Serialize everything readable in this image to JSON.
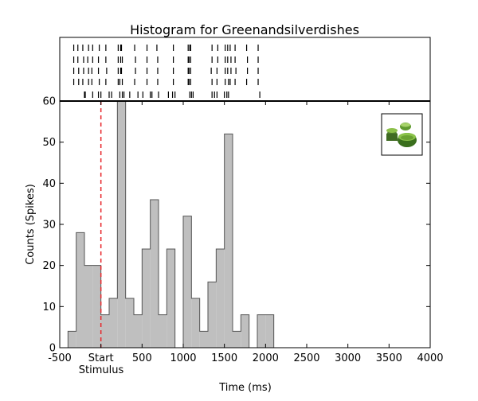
{
  "chart_data": {
    "type": "bar",
    "title": "Histogram for Greenandsilverdishes",
    "xlabel": "Time (ms)",
    "ylabel": "Counts (Spikes)",
    "xlim": [
      -500,
      4000
    ],
    "ylim": [
      0,
      60
    ],
    "xticks": [
      {
        "value": -500,
        "label": "-500"
      },
      {
        "value": 0,
        "label": "Start"
      },
      {
        "value": 500,
        "label": "500"
      },
      {
        "value": 1000,
        "label": "1000"
      },
      {
        "value": 1500,
        "label": "1500"
      },
      {
        "value": 2000,
        "label": "2000"
      },
      {
        "value": 2500,
        "label": "2500"
      },
      {
        "value": 3000,
        "label": "3000"
      },
      {
        "value": 3500,
        "label": "3500"
      },
      {
        "value": 4000,
        "label": "4000"
      }
    ],
    "yticks": [
      0,
      10,
      20,
      30,
      40,
      50,
      60
    ],
    "stimulus_label": "Stimulus",
    "stimulus_marker": {
      "x": 0,
      "style": "dashed",
      "color": "#e8262a"
    },
    "bar_color": "#bfbfbf",
    "bar_edge_color": "#555555",
    "bin_width": 100,
    "bins": [
      {
        "start": -400,
        "value": 4
      },
      {
        "start": -300,
        "value": 28
      },
      {
        "start": -200,
        "value": 20
      },
      {
        "start": -100,
        "value": 20
      },
      {
        "start": 0,
        "value": 8
      },
      {
        "start": 100,
        "value": 12
      },
      {
        "start": 200,
        "value": 60
      },
      {
        "start": 300,
        "value": 12
      },
      {
        "start": 400,
        "value": 8
      },
      {
        "start": 500,
        "value": 24
      },
      {
        "start": 600,
        "value": 36
      },
      {
        "start": 700,
        "value": 8
      },
      {
        "start": 800,
        "value": 24
      },
      {
        "start": 900,
        "value": 0
      },
      {
        "start": 1000,
        "value": 32
      },
      {
        "start": 1100,
        "value": 12
      },
      {
        "start": 1200,
        "value": 4
      },
      {
        "start": 1300,
        "value": 16
      },
      {
        "start": 1400,
        "value": 24
      },
      {
        "start": 1500,
        "value": 52
      },
      {
        "start": 1600,
        "value": 4
      },
      {
        "start": 1700,
        "value": 8
      },
      {
        "start": 1800,
        "value": 0
      },
      {
        "start": 1900,
        "value": 8
      },
      {
        "start": 2000,
        "value": 8
      }
    ],
    "raster": {
      "trials": [
        [
          -330,
          -280,
          -220,
          -150,
          -100,
          -20,
          60,
          210,
          240,
          250,
          410,
          560,
          680,
          880,
          1060,
          1080,
          1090,
          1350,
          1420,
          1510,
          1540,
          1570,
          1630,
          1770,
          1910
        ],
        [
          -330,
          -280,
          -210,
          -160,
          -100,
          -30,
          60,
          210,
          240,
          260,
          420,
          560,
          690,
          880,
          1060,
          1070,
          1090,
          1350,
          1420,
          1510,
          1540,
          1580,
          1630,
          1780,
          1910
        ],
        [
          -330,
          -270,
          -210,
          -150,
          -110,
          -30,
          70,
          210,
          240,
          250,
          420,
          560,
          690,
          880,
          1060,
          1070,
          1090,
          1340,
          1410,
          1510,
          1540,
          1580,
          1640,
          1780,
          1910
        ],
        [
          -330,
          -270,
          -220,
          -150,
          -110,
          -20,
          60,
          210,
          230,
          260,
          410,
          560,
          690,
          880,
          1060,
          1070,
          1090,
          1350,
          1410,
          1510,
          1550,
          1570,
          1630,
          1770,
          1910
        ],
        [
          -200,
          -190,
          -100,
          -30,
          0,
          100,
          130,
          230,
          260,
          280,
          350,
          450,
          510,
          600,
          620,
          700,
          820,
          870,
          900,
          1080,
          1100,
          1120,
          1350,
          1380,
          1410,
          1500,
          1530,
          1550,
          1930
        ]
      ]
    },
    "inset_image": "green-dishes-thumbnail"
  }
}
